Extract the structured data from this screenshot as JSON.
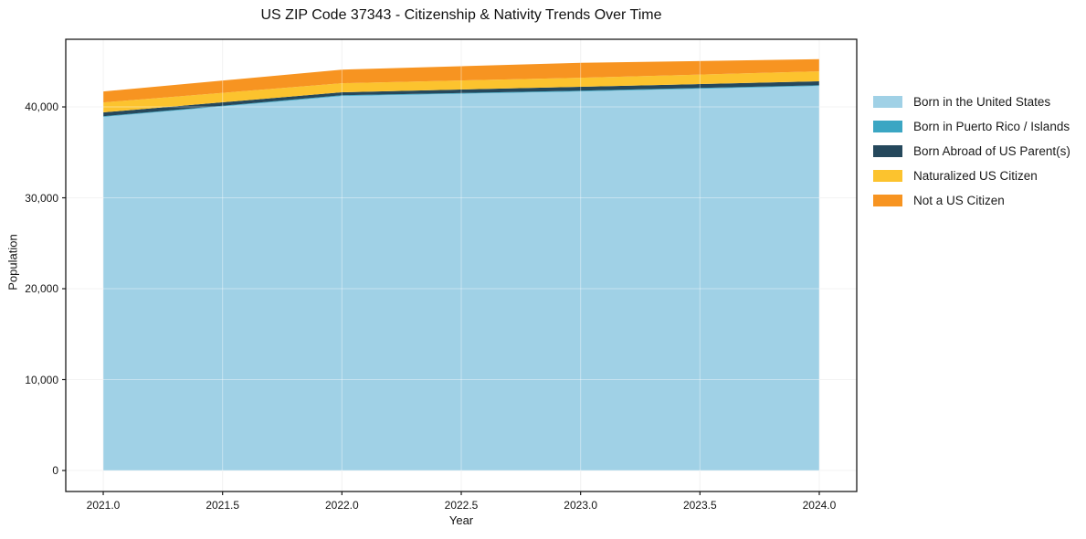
{
  "chart_data": {
    "type": "area",
    "stacked": true,
    "title": "US ZIP Code 37343 - Citizenship & Nativity Trends Over Time",
    "xlabel": "Year",
    "ylabel": "Population",
    "x": [
      2021,
      2022,
      2023,
      2024
    ],
    "series": [
      {
        "name": "Born in the United States",
        "color": "#a0d1e6",
        "values": [
          38900,
          41200,
          41700,
          42300
        ]
      },
      {
        "name": "Born in Puerto Rico / Islands",
        "color": "#3ba6c3",
        "values": [
          80,
          80,
          80,
          80
        ]
      },
      {
        "name": "Born Abroad of US Parent(s)",
        "color": "#25485c",
        "values": [
          420,
          330,
          430,
          440
        ]
      },
      {
        "name": "Naturalized US Citizen",
        "color": "#fcc32e",
        "values": [
          1100,
          1000,
          1000,
          1090
        ]
      },
      {
        "name": "Not a US Citizen",
        "color": "#f79421",
        "values": [
          1200,
          1490,
          1640,
          1340
        ]
      }
    ],
    "xlim": [
      2020.843,
      2024.157
    ],
    "ylim": [
      -2310,
      47440
    ],
    "xticks": {
      "values": [
        2021.0,
        2021.5,
        2022.0,
        2022.5,
        2023.0,
        2023.5,
        2024.0
      ],
      "labels": [
        "2021.0",
        "2021.5",
        "2022.0",
        "2022.5",
        "2023.0",
        "2023.5",
        "2024.0"
      ]
    },
    "yticks": {
      "values": [
        0,
        10000,
        20000,
        30000,
        40000
      ],
      "labels": [
        "0",
        "10,000",
        "20,000",
        "30,000",
        "40,000"
      ]
    },
    "grid": true,
    "grid_color": "#ececec",
    "grid_overlay_color": "rgba(255,255,255,0.4)",
    "spine_color": "#1a1a1a",
    "legend_position": "right"
  }
}
